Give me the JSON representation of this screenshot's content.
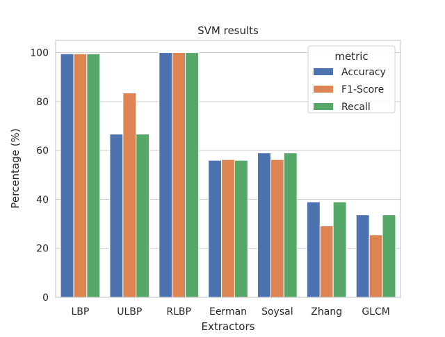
{
  "chart_data": {
    "type": "bar",
    "title": "SVM results",
    "xlabel": "Extractors",
    "ylabel": "Percentage (%)",
    "ylim": [
      0,
      105
    ],
    "yticks": [
      0,
      20,
      40,
      60,
      80,
      100
    ],
    "categories": [
      "LBP",
      "ULBP",
      "RLBP",
      "Eerman",
      "Soysal",
      "Zhang",
      "GLCM"
    ],
    "series": [
      {
        "name": "Accuracy",
        "color": "#4c72b0",
        "values": [
          99.5,
          66.7,
          100,
          56.0,
          59.0,
          39.0,
          33.7
        ]
      },
      {
        "name": "F1-Score",
        "color": "#dd8452",
        "values": [
          99.5,
          83.5,
          100,
          56.3,
          56.3,
          29.2,
          25.5
        ]
      },
      {
        "name": "Recall",
        "color": "#55a868",
        "values": [
          99.5,
          66.7,
          100,
          56.0,
          59.0,
          39.0,
          33.7
        ]
      }
    ],
    "legend": {
      "title": "metric",
      "position": "top-right"
    },
    "grid": "horizontal"
  }
}
